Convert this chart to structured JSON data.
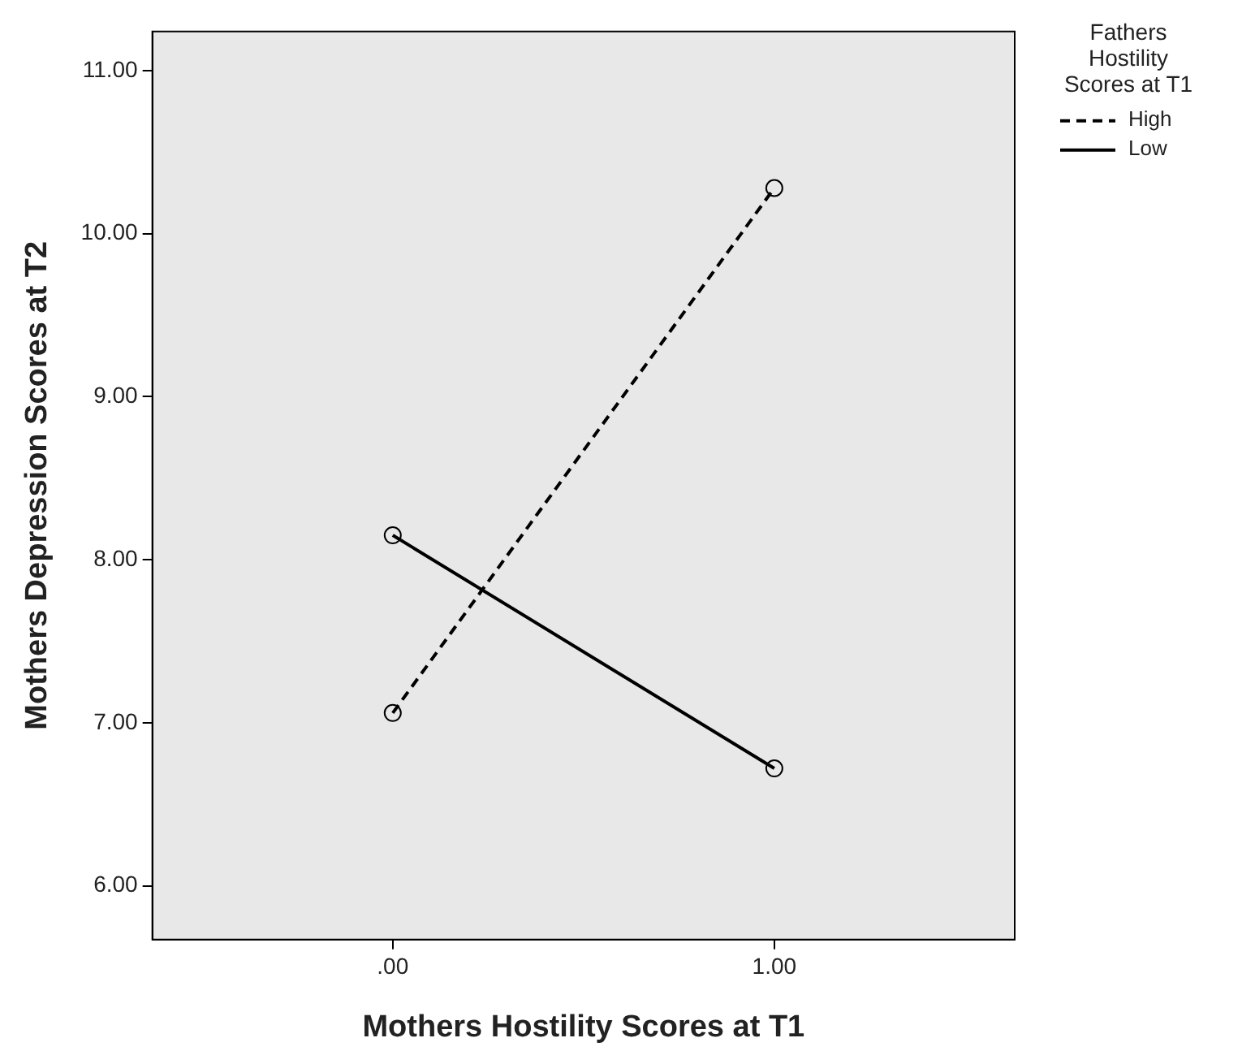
{
  "chart_data": {
    "type": "line",
    "xlabel": "Mothers Hostility Scores at T1",
    "ylabel": "Mothers Depression Scores at T2",
    "legend_title": "Fathers Hostility Scores at T1",
    "x": [
      0,
      1
    ],
    "series": [
      {
        "name": "High",
        "color": "#000000",
        "values": [
          7.06,
          10.28
        ],
        "line_style": "dashed"
      },
      {
        "name": "Low",
        "color": "#000000",
        "values": [
          8.15,
          6.72
        ],
        "line_style": "solid"
      }
    ],
    "xlim": [
      -0.63,
      1.63
    ],
    "ylim": [
      5.67,
      11.24
    ],
    "xticks": [
      {
        "value": 0,
        "label": ".00"
      },
      {
        "value": 1,
        "label": "1.00"
      }
    ],
    "yticks": [
      {
        "value": 6,
        "label": "6.00"
      },
      {
        "value": 7,
        "label": "7.00"
      },
      {
        "value": 8,
        "label": "8.00"
      },
      {
        "value": 9,
        "label": "9.00"
      },
      {
        "value": 10,
        "label": "10.00"
      },
      {
        "value": 11,
        "label": "11.00"
      }
    ],
    "grid": false,
    "legend": "top right",
    "marker": "circle"
  }
}
